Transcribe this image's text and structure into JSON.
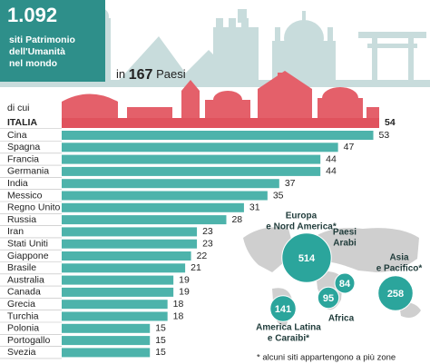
{
  "header": {
    "total": "1.092",
    "total_caption": [
      "siti Patrimonio",
      "dell'Umanità",
      "nel mondo"
    ],
    "countries_prefix": "in",
    "countries": "167",
    "countries_suffix": "Paesi",
    "subset_label": "di cui"
  },
  "chart_data": [
    {
      "type": "hbar",
      "categories": [
        "ITALIA",
        "Cina",
        "Spagna",
        "Francia",
        "Germania",
        "India",
        "Messico",
        "Regno Unito",
        "Russia",
        "Iran",
        "Stati Uniti",
        "Giappone",
        "Brasile",
        "Australia",
        "Canada",
        "Grecia",
        "Turchia",
        "Polonia",
        "Portogallo",
        "Svezia"
      ],
      "values": [
        54,
        53,
        47,
        44,
        44,
        37,
        35,
        31,
        28,
        23,
        23,
        22,
        21,
        19,
        19,
        18,
        18,
        15,
        15,
        15
      ],
      "colors": [
        "#e0525d",
        "#4db3ab",
        "#4db3ab",
        "#4db3ab",
        "#4db3ab",
        "#4db3ab",
        "#4db3ab",
        "#4db3ab",
        "#4db3ab",
        "#4db3ab",
        "#4db3ab",
        "#4db3ab",
        "#4db3ab",
        "#4db3ab",
        "#4db3ab",
        "#4db3ab",
        "#4db3ab",
        "#4db3ab",
        "#4db3ab",
        "#4db3ab"
      ]
    },
    {
      "type": "bubble-map",
      "categories": [
        [
          "Europa",
          "e Nord America*"
        ],
        [
          "Paesi",
          "Arabi"
        ],
        [
          "Asia",
          "e Pacifico*"
        ],
        [
          "America Latina",
          "e Caraibi*"
        ],
        [
          "Africa"
        ]
      ],
      "values": [
        514,
        84,
        258,
        141,
        95
      ],
      "color": "#2ba59c",
      "footnote": "* alcuni siti appartengono a più zone"
    }
  ]
}
